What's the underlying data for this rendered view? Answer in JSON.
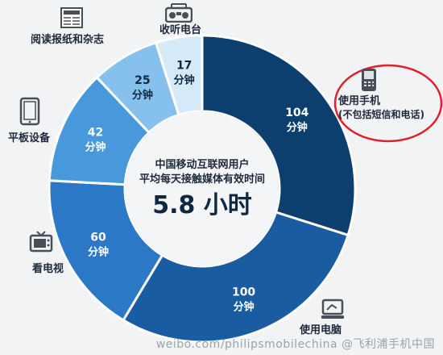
{
  "chart_data": {
    "type": "donut",
    "unit": "分钟",
    "center": {
      "line1": "中国移动互联网用户",
      "line2": "平均每天接触媒体有效时间",
      "value": "5.8 小时"
    },
    "slices": [
      {
        "label": "使用手机 (不包括短信和电话)",
        "value": 104,
        "value_text": "104",
        "unit_text": "分钟",
        "color": "#0d3f6e"
      },
      {
        "label": "使用电脑",
        "value": 100,
        "value_text": "100",
        "unit_text": "分钟",
        "color": "#1a5ca1"
      },
      {
        "label": "看电视",
        "value": 60,
        "value_text": "60",
        "unit_text": "分钟",
        "color": "#2b78c6"
      },
      {
        "label": "平板设备",
        "value": 42,
        "value_text": "42",
        "unit_text": "分钟",
        "color": "#4898dc"
      },
      {
        "label": "阅读报纸和杂志",
        "value": 25,
        "value_text": "25",
        "unit_text": "分钟",
        "color": "#86c0ec"
      },
      {
        "label": "收听电台",
        "value": 17,
        "value_text": "17",
        "unit_text": "分钟",
        "color": "#d5eaf9"
      }
    ]
  },
  "labels": {
    "phone_line1": "使用手机",
    "phone_line2": "(不包括短信和电话)",
    "computer": "使用电脑",
    "tv": "看电视",
    "tablet": "平板设备",
    "newspaper": "阅读报纸和杂志",
    "radio": "收听电台"
  },
  "watermark": "weibo.com/philipsmobilechina  @飞利浦手机中国",
  "icons": [
    "phone-icon",
    "computer-icon",
    "tv-icon",
    "tablet-icon",
    "newspaper-icon",
    "radio-icon"
  ],
  "highlight_color": "#e0202c"
}
